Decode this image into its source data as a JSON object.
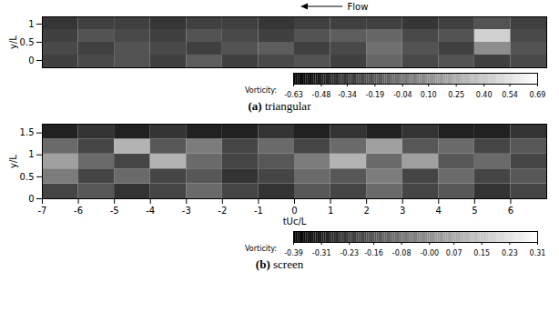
{
  "chart_data": [
    {
      "type": "heatmap",
      "title": "(a) triangular",
      "annotation": "Flow",
      "ylabel": "y/L",
      "xlim": [
        -7,
        7
      ],
      "ylim": [
        -0.2,
        1.2
      ],
      "yticks": [
        0,
        0.5,
        1
      ],
      "tick_labels": "y",
      "x_bins": [
        -7,
        -6,
        -5,
        -4,
        -3,
        -2,
        -1,
        0,
        1,
        2,
        3,
        4,
        5,
        6,
        7
      ],
      "y_bins": [
        -0.2,
        0.15,
        0.5,
        0.85,
        1.2
      ],
      "values": [
        [
          -0.3,
          -0.25,
          -0.2,
          -0.3,
          -0.15,
          -0.3,
          -0.25,
          -0.2,
          -0.3,
          -0.1,
          -0.25,
          -0.2,
          -0.3,
          -0.25
        ],
        [
          -0.25,
          -0.3,
          -0.2,
          -0.25,
          -0.3,
          -0.2,
          -0.15,
          -0.3,
          -0.25,
          -0.05,
          -0.2,
          -0.3,
          0.1,
          -0.2
        ],
        [
          -0.3,
          -0.2,
          -0.25,
          -0.3,
          -0.2,
          -0.25,
          -0.3,
          -0.2,
          -0.15,
          -0.1,
          -0.25,
          -0.2,
          0.45,
          -0.25
        ],
        [
          -0.35,
          -0.3,
          -0.3,
          -0.35,
          -0.3,
          -0.3,
          -0.35,
          -0.3,
          -0.3,
          -0.3,
          -0.35,
          -0.3,
          -0.2,
          -0.3
        ]
      ],
      "colorbar": {
        "label": "Vorticity:",
        "range": [
          -0.63,
          0.69
        ],
        "ticks": [
          -0.63,
          -0.48,
          -0.34,
          -0.19,
          -0.04,
          {
            "value": 0.1,
            "label": "0.10"
          },
          0.25,
          {
            "value": 0.4,
            "label": "0.40"
          },
          0.54,
          0.69
        ]
      }
    },
    {
      "type": "heatmap",
      "title": "(b) screen",
      "ylabel": "y/L",
      "xlabel": "tUc/L",
      "xlim": [
        -7,
        7
      ],
      "ylim": [
        0,
        1.7
      ],
      "xticks": [
        -7,
        -6,
        -5,
        -4,
        -3,
        -2,
        -1,
        0,
        1,
        2,
        3,
        4,
        5,
        6
      ],
      "yticks": [
        0,
        0.5,
        1,
        1.5
      ],
      "x_bins": [
        -7,
        -6,
        -5,
        -4,
        -3,
        -2,
        -1,
        0,
        1,
        2,
        3,
        4,
        5,
        6,
        7
      ],
      "y_bins": [
        0,
        0.34,
        0.68,
        1.02,
        1.36,
        1.7
      ],
      "values": [
        [
          -0.2,
          -0.15,
          -0.25,
          -0.2,
          -0.1,
          -0.2,
          -0.25,
          -0.15,
          -0.2,
          -0.1,
          -0.2,
          -0.15,
          -0.25,
          -0.2
        ],
        [
          -0.05,
          -0.2,
          -0.1,
          -0.2,
          -0.15,
          -0.25,
          -0.2,
          -0.1,
          -0.15,
          -0.05,
          -0.2,
          -0.1,
          -0.2,
          -0.15
        ],
        [
          0.05,
          -0.1,
          -0.2,
          0.1,
          -0.1,
          -0.2,
          -0.15,
          -0.05,
          0.1,
          -0.1,
          0.05,
          -0.15,
          -0.1,
          -0.2
        ],
        [
          -0.1,
          -0.2,
          0.1,
          -0.15,
          -0.05,
          -0.2,
          -0.1,
          -0.2,
          -0.1,
          0.05,
          -0.15,
          -0.1,
          -0.2,
          -0.15
        ],
        [
          -0.3,
          -0.25,
          -0.3,
          -0.25,
          -0.3,
          -0.3,
          -0.25,
          -0.3,
          -0.25,
          -0.3,
          -0.25,
          -0.3,
          -0.3,
          -0.25
        ]
      ],
      "colorbar": {
        "label": "Vorticity:",
        "range": [
          -0.39,
          0.31
        ],
        "ticks": [
          -0.39,
          -0.31,
          -0.23,
          -0.16,
          -0.08,
          {
            "value": 0,
            "label": "-0.00"
          },
          0.07,
          0.15,
          0.23,
          0.31
        ]
      }
    }
  ]
}
